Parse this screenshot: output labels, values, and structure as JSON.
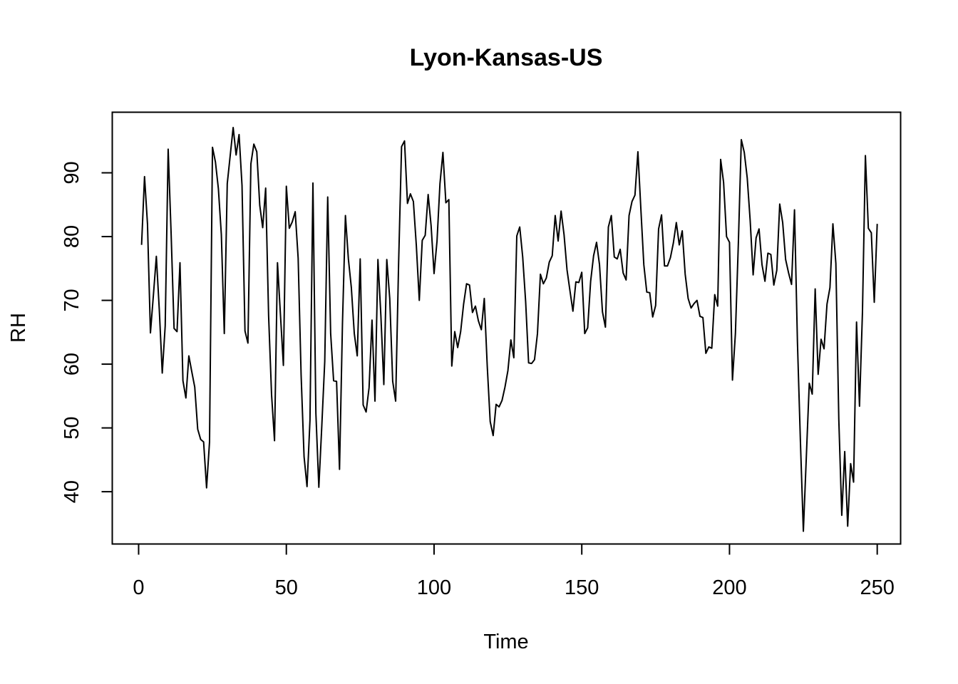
{
  "chart_data": {
    "type": "line",
    "title": "Lyon-Kansas-US",
    "xlabel": "Time",
    "ylabel": "RH",
    "xlim": [
      -8.92,
      257.92
    ],
    "ylim": [
      31.8,
      99.5
    ],
    "xticks": [
      0,
      50,
      100,
      150,
      200,
      250
    ],
    "yticks": [
      40,
      50,
      60,
      70,
      80,
      90
    ],
    "xtick_labels": [
      "0",
      "50",
      "100",
      "150",
      "200",
      "250"
    ],
    "ytick_labels": [
      "40",
      "50",
      "60",
      "70",
      "80",
      "90"
    ],
    "grid": false,
    "legend": "none",
    "line_color": "#000000",
    "series": [
      {
        "x_start": 1,
        "values": [
          78.7,
          89.4,
          82.0,
          64.9,
          70.8,
          76.9,
          68.5,
          58.6,
          66.0,
          93.7,
          80.5,
          65.6,
          65.1,
          75.9,
          57.4,
          54.7,
          61.3,
          58.8,
          56.4,
          49.8,
          48.2,
          47.8,
          40.6,
          47.8,
          94.0,
          91.7,
          87.5,
          80.3,
          64.8,
          88.3,
          92.7,
          97.1,
          92.8,
          96.0,
          88.0,
          65.2,
          63.3,
          91.4,
          94.5,
          93.3,
          84.9,
          81.4,
          87.6,
          67.6,
          55.2,
          48.0,
          75.9,
          67.8,
          59.8,
          87.9,
          81.3,
          82.3,
          83.9,
          76.6,
          58.3,
          45.5,
          40.8,
          51.2,
          88.4,
          52.3,
          40.7,
          50.3,
          60.4,
          86.2,
          64.8,
          57.4,
          57.3,
          43.5,
          66.4,
          83.3,
          76.5,
          72.0,
          64.8,
          61.3,
          76.5,
          53.6,
          52.5,
          56.3,
          66.9,
          54.2,
          76.4,
          67.6,
          56.8,
          76.4,
          70.3,
          57.3,
          54.2,
          75.8,
          94.1,
          95.0,
          85.2,
          86.7,
          85.5,
          78.6,
          70.0,
          79.4,
          80.2,
          86.6,
          81.7,
          74.2,
          79.3,
          88.3,
          93.2,
          85.3,
          85.8,
          59.7,
          65.1,
          62.6,
          65.1,
          69.4,
          72.6,
          72.4,
          68.1,
          69.1,
          66.8,
          65.4,
          70.3,
          59.7,
          51.0,
          48.8,
          53.7,
          53.3,
          54.3,
          56.4,
          59.0,
          63.8,
          61.0,
          80.1,
          81.5,
          76.8,
          69.8,
          60.2,
          60.1,
          60.7,
          64.8,
          74.1,
          72.6,
          73.5,
          76.0,
          77.0,
          83.3,
          79.3,
          84.0,
          80.3,
          74.8,
          71.5,
          68.3,
          72.9,
          72.8,
          74.4,
          64.8,
          65.7,
          73.0,
          77.0,
          79.1,
          75.6,
          68.2,
          65.8,
          81.5,
          83.3,
          76.8,
          76.5,
          78.0,
          74.3,
          73.2,
          83.3,
          85.5,
          86.5,
          93.3,
          84.3,
          75.6,
          71.3,
          71.2,
          67.4,
          69.2,
          81.2,
          83.4,
          75.4,
          75.4,
          76.7,
          79.0,
          82.2,
          78.7,
          80.9,
          74.1,
          70.3,
          68.8,
          69.5,
          70.0,
          67.5,
          67.3,
          61.7,
          62.7,
          62.5,
          70.9,
          69.1,
          92.1,
          88.5,
          80.0,
          79.1,
          57.5,
          64.8,
          79.0,
          95.2,
          93.2,
          89.2,
          82.5,
          74.0,
          79.8,
          81.2,
          75.6,
          73.0,
          77.4,
          77.2,
          72.4,
          74.7,
          85.1,
          82.2,
          76.4,
          74.3,
          72.5,
          84.2,
          63.4,
          47.9,
          33.8,
          45.4,
          57.0,
          55.3,
          71.8,
          58.4,
          63.9,
          62.4,
          69.4,
          72.0,
          82.0,
          75.8,
          51.3,
          36.3,
          46.3,
          34.6,
          44.4,
          41.5,
          66.6,
          53.4,
          68.1,
          92.7,
          81.3,
          80.6,
          69.7,
          82.0
        ]
      }
    ]
  }
}
